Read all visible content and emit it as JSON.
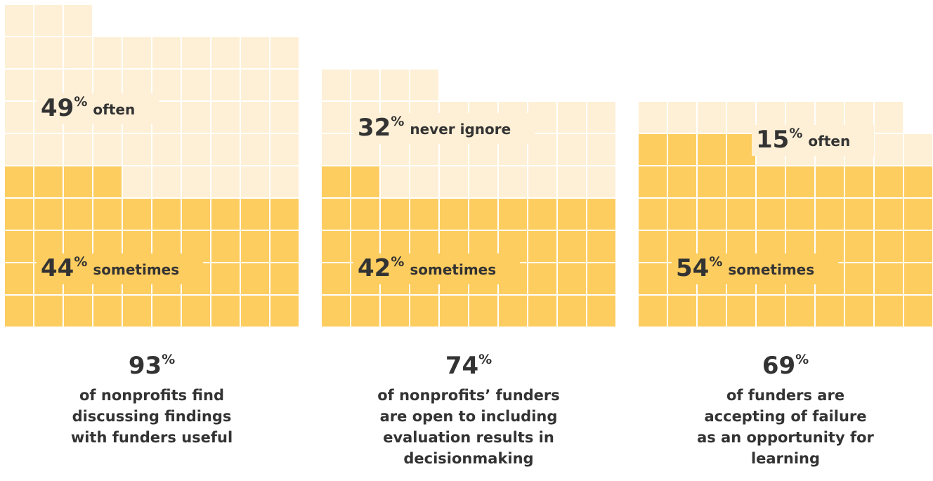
{
  "chart_data": [
    {
      "type": "waffle",
      "unit": "%",
      "total": 93,
      "caption": [
        "of nonprofits find",
        "discussing findings",
        "with funders useful"
      ],
      "series": [
        {
          "name": "sometimes",
          "color": "#fdcd60",
          "values": [
            44
          ]
        },
        {
          "name": "often",
          "color": "#fef0d6",
          "values": [
            49
          ]
        }
      ]
    },
    {
      "type": "waffle",
      "unit": "%",
      "total": 74,
      "caption": [
        "of nonprofits’ funders",
        "are open to including",
        "evaluation results in",
        "decisionmaking"
      ],
      "series": [
        {
          "name": "sometimes",
          "color": "#fdcd60",
          "values": [
            42
          ]
        },
        {
          "name": "never ignore",
          "color": "#fef0d6",
          "values": [
            32
          ]
        }
      ]
    },
    {
      "type": "waffle",
      "unit": "%",
      "total": 69,
      "caption": [
        "of funders are",
        "accepting of failure",
        "as an opportunity for",
        "learning"
      ],
      "series": [
        {
          "name": "sometimes",
          "color": "#fdcd60",
          "values": [
            54
          ]
        },
        {
          "name": "often",
          "color": "#fef0d6",
          "values": [
            15
          ]
        }
      ]
    }
  ]
}
